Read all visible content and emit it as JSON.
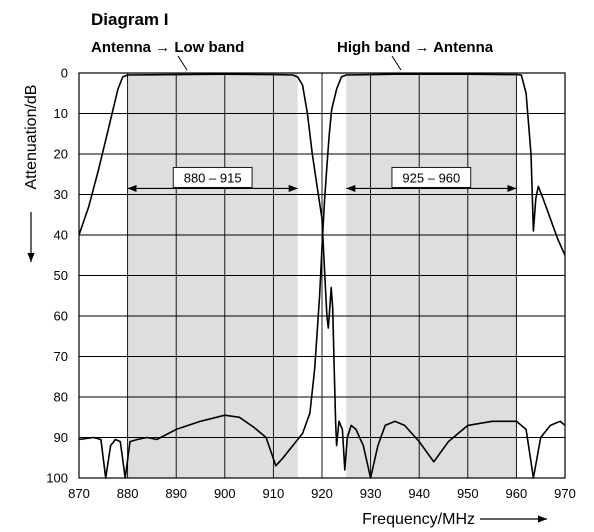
{
  "chart_data": {
    "type": "line",
    "title": "Diagram I",
    "xlabel": "Frequency/MHz",
    "ylabel": "Attenuation/dB",
    "xlim": [
      870,
      970
    ],
    "ylim": [
      0,
      100
    ],
    "y_inverted": true,
    "grid": true,
    "x_ticks": [
      "870",
      "880",
      "890",
      "900",
      "910",
      "920",
      "930",
      "940",
      "950",
      "960",
      "970"
    ],
    "y_ticks": [
      "0",
      "10",
      "20",
      "30",
      "40",
      "50",
      "60",
      "70",
      "80",
      "90",
      "100"
    ],
    "passbands": [
      {
        "label": "880 – 915",
        "from": 880,
        "to": 915
      },
      {
        "label": "925 – 960",
        "from": 925,
        "to": 960
      }
    ],
    "series": [
      {
        "name": "Antenna → Low band",
        "points": [
          [
            870,
            40
          ],
          [
            872,
            33
          ],
          [
            874,
            24
          ],
          [
            876,
            14
          ],
          [
            878,
            4
          ],
          [
            879,
            1
          ],
          [
            880,
            0.5
          ],
          [
            890,
            0.4
          ],
          [
            900,
            0.3
          ],
          [
            910,
            0.4
          ],
          [
            914,
            0.5
          ],
          [
            915,
            1
          ],
          [
            916,
            3
          ],
          [
            917,
            10
          ],
          [
            918,
            20
          ],
          [
            919,
            28
          ],
          [
            920,
            36
          ],
          [
            920.5,
            48
          ],
          [
            921,
            60
          ],
          [
            921.3,
            63
          ],
          [
            921.6,
            58
          ],
          [
            921.9,
            53
          ],
          [
            922.2,
            58
          ],
          [
            922.5,
            72
          ],
          [
            922.8,
            86
          ],
          [
            923,
            92
          ],
          [
            923.5,
            86
          ],
          [
            924.2,
            88
          ],
          [
            924.7,
            98
          ],
          [
            925.2,
            90
          ],
          [
            926,
            87
          ],
          [
            927,
            88
          ],
          [
            928.5,
            92
          ],
          [
            930,
            100
          ],
          [
            931.5,
            92
          ],
          [
            933,
            87
          ],
          [
            935,
            86
          ],
          [
            937,
            87
          ],
          [
            940,
            91
          ],
          [
            943,
            96
          ],
          [
            946,
            91
          ],
          [
            950,
            87
          ],
          [
            955,
            86
          ],
          [
            960,
            86
          ],
          [
            962,
            88
          ],
          [
            963.5,
            100
          ],
          [
            965,
            90
          ],
          [
            967,
            87
          ],
          [
            969,
            86
          ],
          [
            970,
            87
          ]
        ]
      },
      {
        "name": "High band → Antenna",
        "points": [
          [
            870,
            90.5
          ],
          [
            873,
            90
          ],
          [
            874.5,
            90.5
          ],
          [
            875.5,
            100
          ],
          [
            876.5,
            92
          ],
          [
            877.5,
            90.5
          ],
          [
            878.5,
            91
          ],
          [
            879.5,
            100
          ],
          [
            880.5,
            91
          ],
          [
            882,
            90.5
          ],
          [
            884,
            90
          ],
          [
            886,
            90.5
          ],
          [
            890,
            88
          ],
          [
            895,
            86
          ],
          [
            900,
            84.5
          ],
          [
            903,
            85
          ],
          [
            906,
            87.5
          ],
          [
            908.5,
            90
          ],
          [
            910.5,
            97
          ],
          [
            912,
            95
          ],
          [
            914,
            92
          ],
          [
            916,
            89
          ],
          [
            917.5,
            84
          ],
          [
            918.5,
            73
          ],
          [
            919.5,
            55
          ],
          [
            920,
            43
          ],
          [
            920.5,
            32
          ],
          [
            921,
            23
          ],
          [
            921.5,
            15
          ],
          [
            922,
            9
          ],
          [
            923,
            4
          ],
          [
            924,
            1
          ],
          [
            925,
            0.5
          ],
          [
            935,
            0.3
          ],
          [
            950,
            0.3
          ],
          [
            960,
            0.4
          ],
          [
            961,
            0.5
          ],
          [
            962,
            5
          ],
          [
            963,
            20
          ],
          [
            963.5,
            39
          ],
          [
            964,
            31
          ],
          [
            964.5,
            28
          ],
          [
            965.5,
            31
          ],
          [
            967,
            36
          ],
          [
            968.5,
            41
          ],
          [
            970,
            45
          ]
        ]
      }
    ]
  }
}
